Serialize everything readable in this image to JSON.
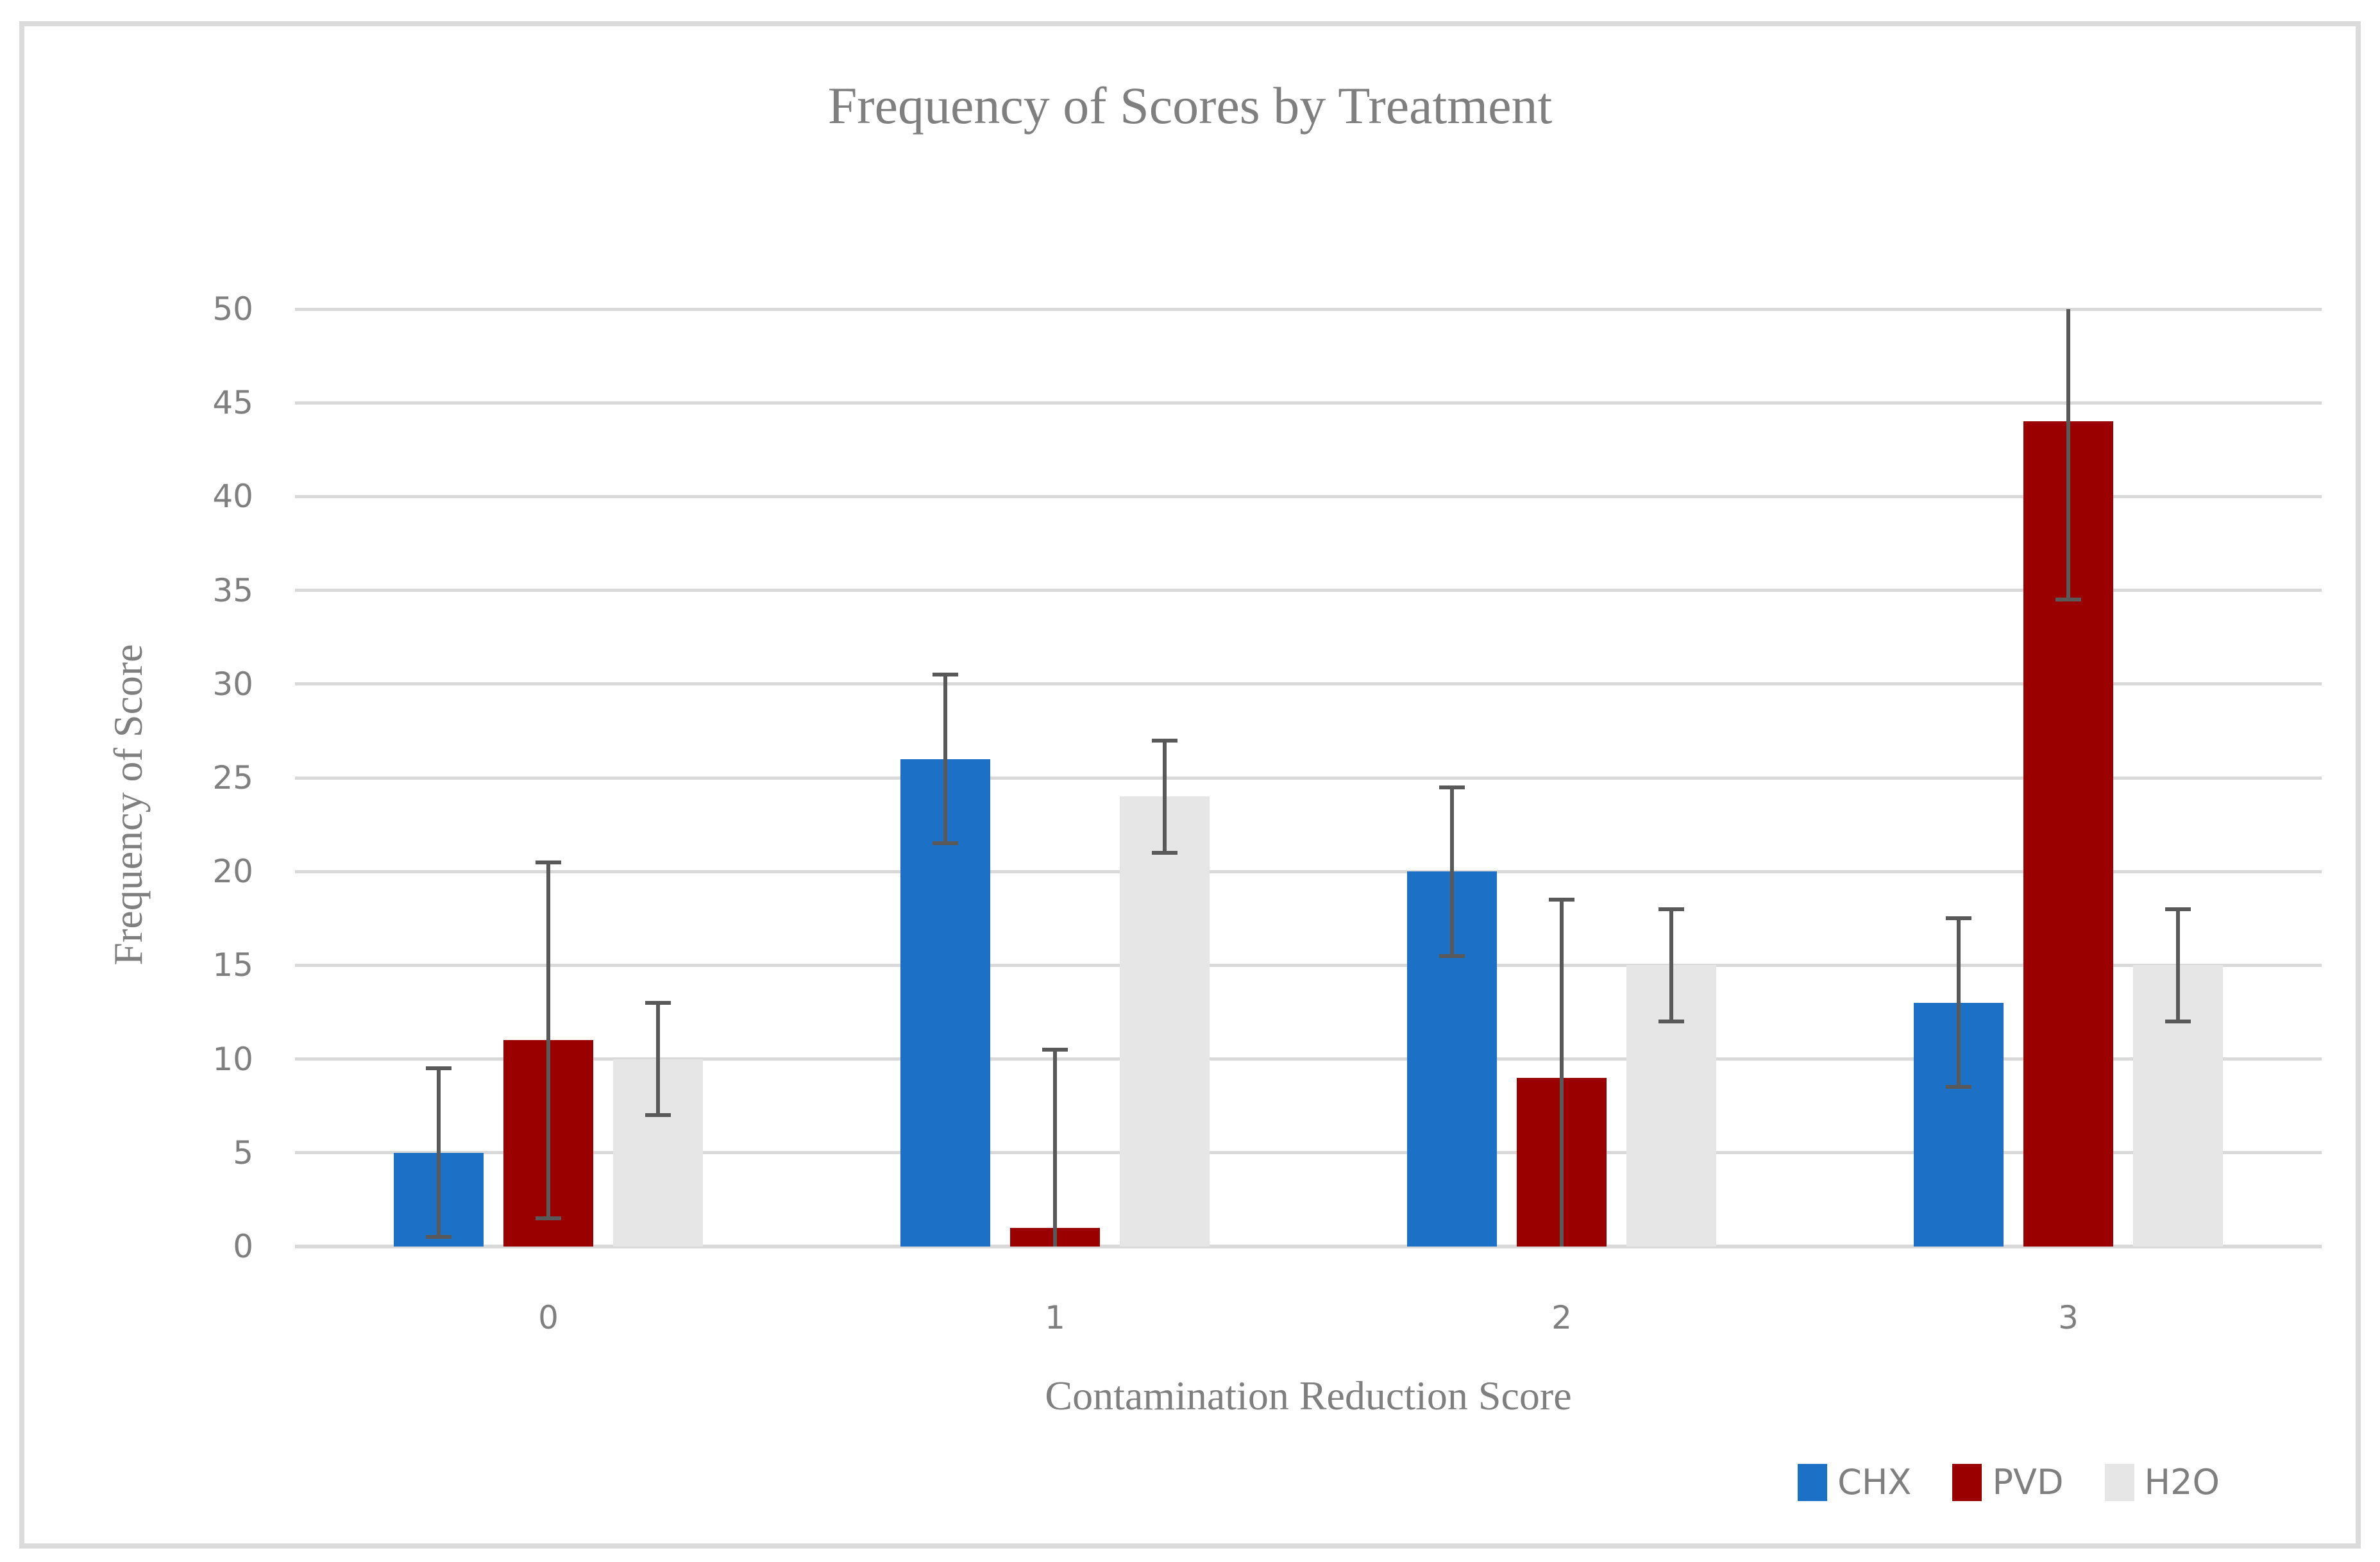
{
  "title": "Frequency of Scores by Treatment",
  "y_axis": {
    "label": "Frequency of Score"
  },
  "x_axis": {
    "label": "Contamination Reduction Score"
  },
  "legend": {
    "position": "bottom-right"
  },
  "colors": {
    "chx": "#1c70c6",
    "pvd": "#9b0000",
    "h2o": "#e6e6e6",
    "error_bar": "#595959",
    "gridline": "#d9d9d9",
    "text": "#7f7f7f"
  },
  "chart_data": {
    "type": "bar",
    "title": "Frequency of Scores by Treatment",
    "xlabel": "Contamination Reduction Score",
    "ylabel": "Frequency of Score",
    "categories": [
      "0",
      "1",
      "2",
      "3"
    ],
    "series": [
      {
        "name": "CHX",
        "color": "#1c70c6",
        "values": [
          5,
          26,
          20,
          13
        ],
        "error": 4.5
      },
      {
        "name": "PVD",
        "color": "#9b0000",
        "values": [
          11,
          1,
          9,
          44
        ],
        "error": 9.5
      },
      {
        "name": "H2O",
        "color": "#e6e6e6",
        "values": [
          10,
          24,
          15,
          15
        ],
        "error": 3
      }
    ],
    "ylim": [
      0,
      50
    ],
    "ytick_step": 5,
    "yticks": [
      0,
      5,
      10,
      15,
      20,
      25,
      30,
      35,
      40,
      45,
      50
    ],
    "grid": true,
    "error_bars": "plus-minus, clipped at axis limits",
    "legend_position": "bottom-right"
  }
}
